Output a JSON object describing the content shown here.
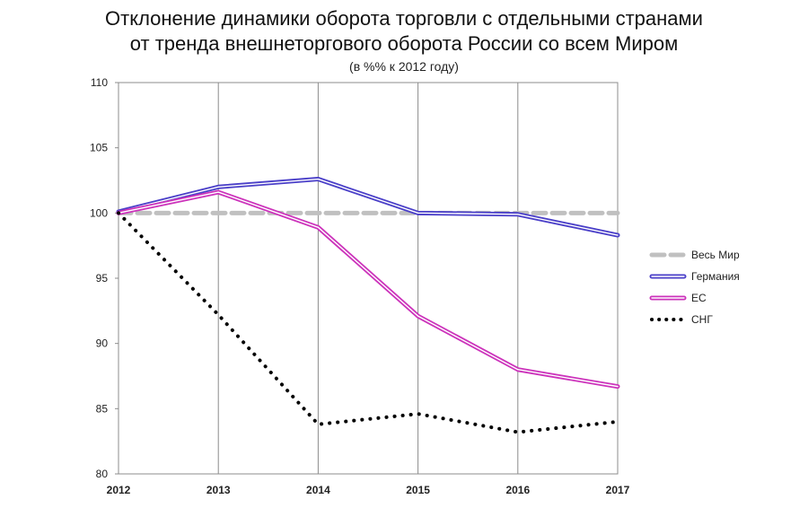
{
  "chart_data": {
    "type": "line",
    "title_line1": "Отклонение динамики оборота торговли с отдельными странами",
    "title_line2": "от тренда внешнеторгового оборота России со всем Миром",
    "subtitle": "(в %% к 2012 году)",
    "x": [
      "2012",
      "2013",
      "2014",
      "2015",
      "2016",
      "2017"
    ],
    "y_ticks": [
      80,
      85,
      90,
      95,
      100,
      105,
      110
    ],
    "ylim": [
      80,
      110
    ],
    "grid": "vertical",
    "legend_position": "right",
    "series": [
      {
        "name": "Весь Мир",
        "values": [
          100,
          100,
          100,
          100,
          100,
          100
        ],
        "color": "#c0c0c0",
        "style": "dashed"
      },
      {
        "name": "Германия",
        "values": [
          100.1,
          102.0,
          102.6,
          100.0,
          99.9,
          98.3
        ],
        "color": "#4a3fc8",
        "style": "double"
      },
      {
        "name": "ЕС",
        "values": [
          100.0,
          101.6,
          98.9,
          92.1,
          88.0,
          86.7
        ],
        "color": "#cc33bb",
        "style": "double"
      },
      {
        "name": "СНГ",
        "values": [
          100.0,
          92.2,
          83.8,
          84.6,
          83.2,
          84.0
        ],
        "color": "#000000",
        "style": "dotted"
      }
    ]
  }
}
